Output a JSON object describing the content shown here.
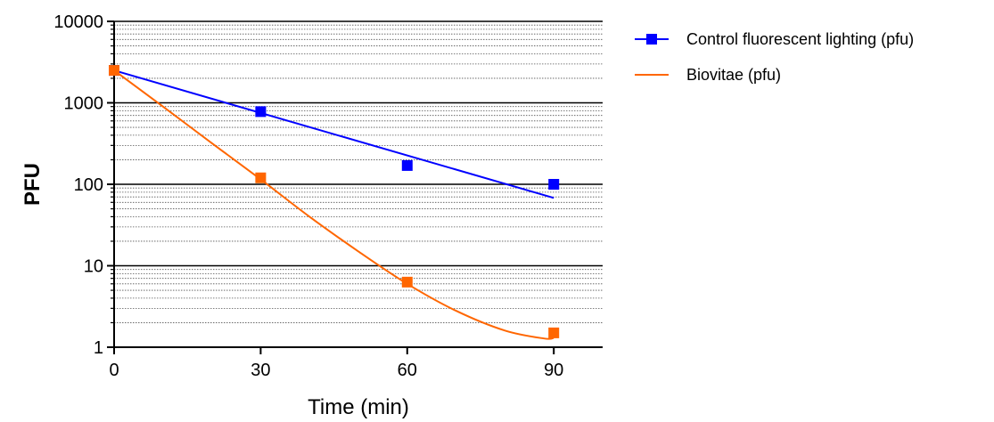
{
  "chart_data": {
    "type": "scatter",
    "xlabel": "Time (min)",
    "ylabel": "PFU",
    "x_ticks": [
      "0",
      "30",
      "60",
      "90"
    ],
    "x_tick_values": [
      0,
      30,
      60,
      90
    ],
    "xlim": [
      0,
      100
    ],
    "y_scale": "log",
    "ylim": [
      1,
      10000
    ],
    "y_ticks": [
      "1",
      "10",
      "100",
      "1000",
      "10000"
    ],
    "y_tick_values": [
      1,
      10,
      100,
      1000,
      10000
    ],
    "grid": "horizontal major solid, minor dotted",
    "legend_position": "top-right, outside plot",
    "series": [
      {
        "name": "Control fluorescent lighting (pfu)",
        "color": "#0000ff",
        "marker": "square",
        "x": [
          0,
          30,
          60,
          90
        ],
        "y": [
          2500,
          780,
          170,
          100
        ],
        "fit_x": [
          0,
          90
        ],
        "fit_y": [
          2500,
          68
        ],
        "fit_type": "exponential"
      },
      {
        "name": "Biovitae (pfu)",
        "color": "#ff6600",
        "marker": "square",
        "x": [
          0,
          30,
          60,
          90
        ],
        "y": [
          2500,
          120,
          6.3,
          1.5
        ],
        "fit_x": [
          0,
          10,
          20,
          30,
          40,
          50,
          60,
          70,
          80,
          88,
          90
        ],
        "fit_y": [
          2500,
          900,
          320,
          115,
          40,
          15,
          6.0,
          2.8,
          1.6,
          1.28,
          1.3
        ],
        "fit_type": "smooth"
      }
    ]
  }
}
